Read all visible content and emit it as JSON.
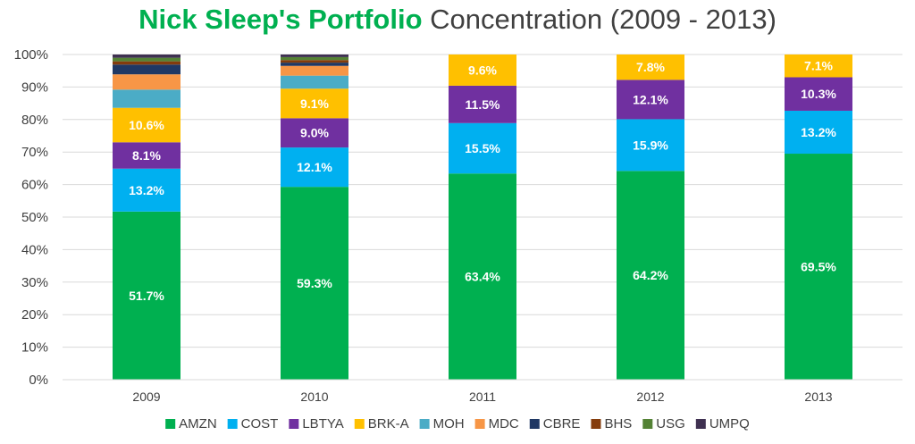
{
  "title": {
    "highlight": "Nick Sleep's Portfolio",
    "rest": "Concentration (2009 - 2013)",
    "highlight_color": "#00b050"
  },
  "chart_data": {
    "type": "bar",
    "stacked": true,
    "categories": [
      "2009",
      "2010",
      "2011",
      "2012",
      "2013"
    ],
    "ylim": [
      0,
      100
    ],
    "yticks": [
      0,
      10,
      20,
      30,
      40,
      50,
      60,
      70,
      80,
      90,
      100
    ],
    "ytick_labels": [
      "0%",
      "10%",
      "20%",
      "30%",
      "40%",
      "50%",
      "60%",
      "70%",
      "80%",
      "90%",
      "100%"
    ],
    "legend_position": "bottom",
    "series": [
      {
        "name": "AMZN",
        "color": "#00b050",
        "values": [
          51.7,
          59.3,
          63.4,
          64.2,
          69.5
        ],
        "labels": [
          "51.7%",
          "59.3%",
          "63.4%",
          "64.2%",
          "69.5%"
        ]
      },
      {
        "name": "COST",
        "color": "#00b0f0",
        "values": [
          13.2,
          12.1,
          15.5,
          15.9,
          13.2
        ],
        "labels": [
          "13.2%",
          "12.1%",
          "15.5%",
          "15.9%",
          "13.2%"
        ]
      },
      {
        "name": "LBTYA",
        "color": "#7030a0",
        "values": [
          8.1,
          9.0,
          11.5,
          12.1,
          10.3
        ],
        "labels": [
          "8.1%",
          "9.0%",
          "11.5%",
          "12.1%",
          "10.3%"
        ]
      },
      {
        "name": "BRK-A",
        "color": "#ffc000",
        "values": [
          10.6,
          9.1,
          9.6,
          7.8,
          7.1
        ],
        "labels": [
          "10.6%",
          "9.1%",
          "9.6%",
          "7.8%",
          "7.1%"
        ]
      },
      {
        "name": "MOH",
        "color": "#4bacc6",
        "values": [
          5.6,
          4.0,
          0,
          0,
          0
        ],
        "labels": [
          "",
          "",
          "",
          "",
          ""
        ]
      },
      {
        "name": "MDC",
        "color": "#f79646",
        "values": [
          4.7,
          3.0,
          0,
          0,
          0
        ],
        "labels": [
          "",
          "",
          "",
          "",
          ""
        ]
      },
      {
        "name": "CBRE",
        "color": "#1f3864",
        "values": [
          3.0,
          1.0,
          0,
          0,
          0
        ],
        "labels": [
          "",
          "",
          "",
          "",
          ""
        ]
      },
      {
        "name": "BHS",
        "color": "#843c0c",
        "values": [
          1.0,
          0.8,
          0,
          0,
          0
        ],
        "labels": [
          "",
          "",
          "",
          "",
          ""
        ]
      },
      {
        "name": "USG",
        "color": "#548235",
        "values": [
          1.1,
          0.9,
          0,
          0,
          0
        ],
        "labels": [
          "",
          "",
          "",
          "",
          ""
        ]
      },
      {
        "name": "UMPQ",
        "color": "#3f3151",
        "values": [
          1.0,
          0.8,
          0,
          0,
          0
        ],
        "labels": [
          "",
          "",
          "",
          "",
          ""
        ]
      }
    ]
  }
}
